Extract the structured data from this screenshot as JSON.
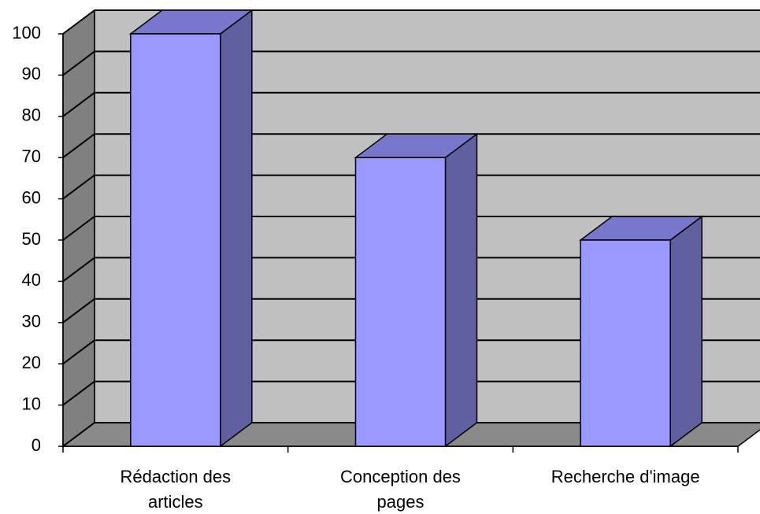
{
  "chart_data": {
    "type": "bar3d",
    "categories": [
      "Rédaction des articles",
      "Conception des pages",
      "Recherche d'image"
    ],
    "values": [
      100,
      70,
      50
    ],
    "color": "#9999ff",
    "ylim": [
      0,
      100
    ],
    "yticks": [
      0,
      10,
      20,
      30,
      40,
      50,
      60,
      70,
      80,
      90,
      100
    ],
    "grid": true
  }
}
